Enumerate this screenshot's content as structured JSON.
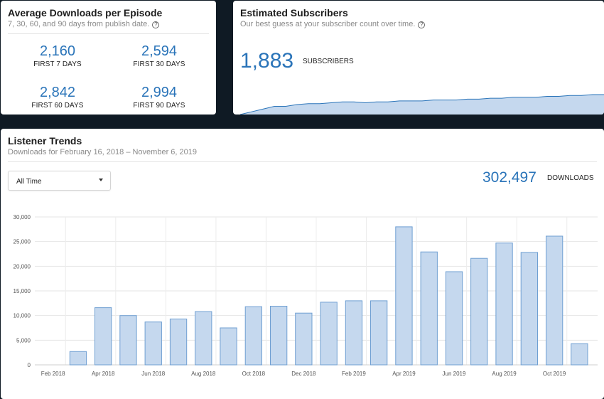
{
  "avg": {
    "title": "Average Downloads per Episode",
    "subtitle": "7, 30, 60, and 90 days from publish date.",
    "help_icon": "question-circle-icon",
    "stats": [
      {
        "value": "2,160",
        "label": "FIRST 7 DAYS"
      },
      {
        "value": "2,594",
        "label": "FIRST 30 DAYS"
      },
      {
        "value": "2,842",
        "label": "FIRST 60 DAYS"
      },
      {
        "value": "2,994",
        "label": "FIRST 90 DAYS"
      }
    ]
  },
  "subscribers": {
    "title": "Estimated Subscribers",
    "subtitle": "Our best guess at your subscriber count over time.",
    "help_icon": "question-circle-icon",
    "count": "1,883",
    "count_label": "SUBSCRIBERS"
  },
  "trends": {
    "title": "Listener Trends",
    "subtitle": "Downloads for February 16, 2018 – November 6, 2019",
    "range_select": "All Time",
    "total": "302,497",
    "total_label": "DOWNLOADS"
  },
  "colors": {
    "accent": "#2a74b9",
    "bar_fill": "#c5d8ee",
    "bar_stroke": "#6f9fd2",
    "background": "#0f1a24"
  },
  "sparkline_data": {
    "type": "area",
    "values": [
      0,
      3,
      6,
      9,
      9,
      11,
      12,
      12,
      13,
      14,
      14,
      13,
      14,
      14,
      15,
      15,
      15,
      16,
      16,
      16,
      17,
      17,
      18,
      18,
      19,
      19,
      19,
      20,
      20,
      21,
      21,
      22,
      22
    ]
  },
  "chart_data": {
    "type": "bar",
    "categories": [
      "Feb 2018",
      "Mar 2018",
      "Apr 2018",
      "May 2018",
      "Jun 2018",
      "Jul 2018",
      "Aug 2018",
      "Sep 2018",
      "Oct 2018",
      "Nov 2018",
      "Dec 2018",
      "Jan 2019",
      "Feb 2019",
      "Mar 2019",
      "Apr 2019",
      "May 2019",
      "Jun 2019",
      "Jul 2019",
      "Aug 2019",
      "Sep 2019",
      "Oct 2019",
      "Nov 2019"
    ],
    "values": [
      0,
      2700,
      11600,
      10000,
      8700,
      9300,
      10800,
      7500,
      11800,
      11900,
      10500,
      12700,
      13000,
      13000,
      28000,
      22900,
      18900,
      21600,
      24700,
      22800,
      26100,
      4300
    ],
    "tick_labels_x": [
      "Feb 2018",
      "Apr 2018",
      "Jun 2018",
      "Aug 2018",
      "Oct 2018",
      "Dec 2018",
      "Feb 2019",
      "Apr 2019",
      "Jun 2019",
      "Aug 2019",
      "Oct 2019"
    ],
    "y_ticks": [
      0,
      5000,
      10000,
      15000,
      20000,
      25000,
      30000
    ],
    "y_tick_labels": [
      "0",
      "5,000",
      "10,000",
      "15,000",
      "20,000",
      "25,000",
      "30,000"
    ],
    "ylim": [
      0,
      30000
    ],
    "grid": true
  }
}
